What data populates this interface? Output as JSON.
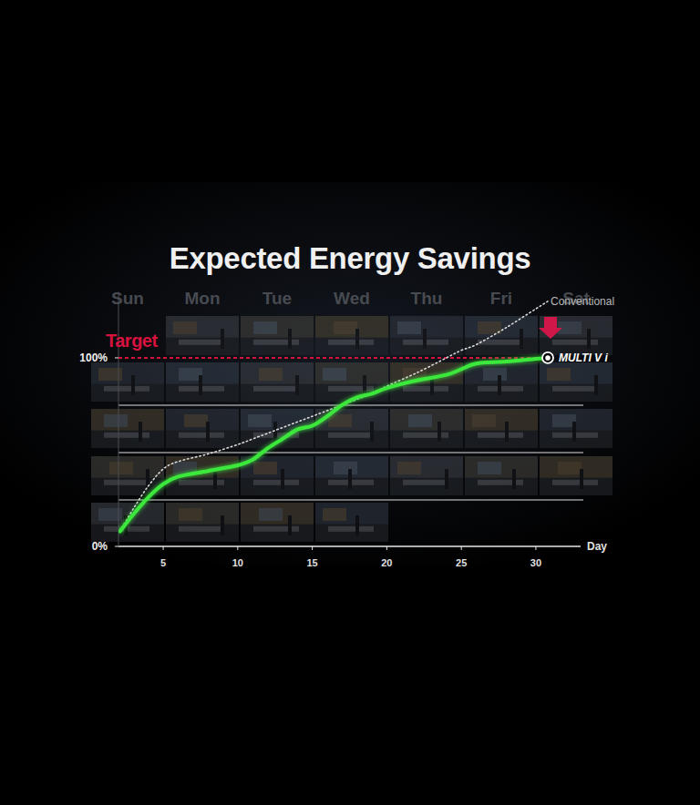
{
  "chart_data": {
    "type": "line",
    "title": "Expected Energy Savings",
    "calendar_weekdays": [
      "Sun",
      "Mon",
      "Tue",
      "Wed",
      "Thu",
      "Fri",
      "Sat"
    ],
    "x_label": "Day",
    "x": [
      2.1,
      3,
      4,
      5,
      6,
      8,
      10,
      11,
      12,
      13,
      14,
      15,
      16,
      17,
      18,
      19,
      20,
      22,
      24,
      25,
      26,
      28,
      30,
      30.8
    ],
    "series": [
      {
        "name": "Conventional",
        "color": "#d8d8d8",
        "line_style": "dotted",
        "values": [
          8,
          20,
          32,
          41,
          45,
          49,
          54,
          57,
          60,
          63,
          66,
          69,
          72,
          75,
          78,
          81,
          85,
          92,
          100,
          104,
          107,
          116,
          126,
          130
        ]
      },
      {
        "name": "MULTI V i",
        "color": "#3ee83e",
        "line_style": "solid",
        "values": [
          8,
          17,
          26,
          33,
          37,
          40,
          43,
          46,
          52,
          57,
          62,
          64,
          69,
          75,
          79,
          81,
          84,
          88,
          91,
          94,
          97,
          98,
          99.5,
          100
        ]
      }
    ],
    "xlim": [
      2,
      33
    ],
    "xticks": [
      5,
      10,
      15,
      20,
      25,
      30
    ],
    "ylim": [
      0,
      135
    ],
    "yticks": [
      {
        "value": 0,
        "label": "0%"
      },
      {
        "value": 100,
        "label": "100%"
      }
    ],
    "annotations": [
      {
        "text": "Target",
        "y": 100
      }
    ],
    "grid": false
  }
}
